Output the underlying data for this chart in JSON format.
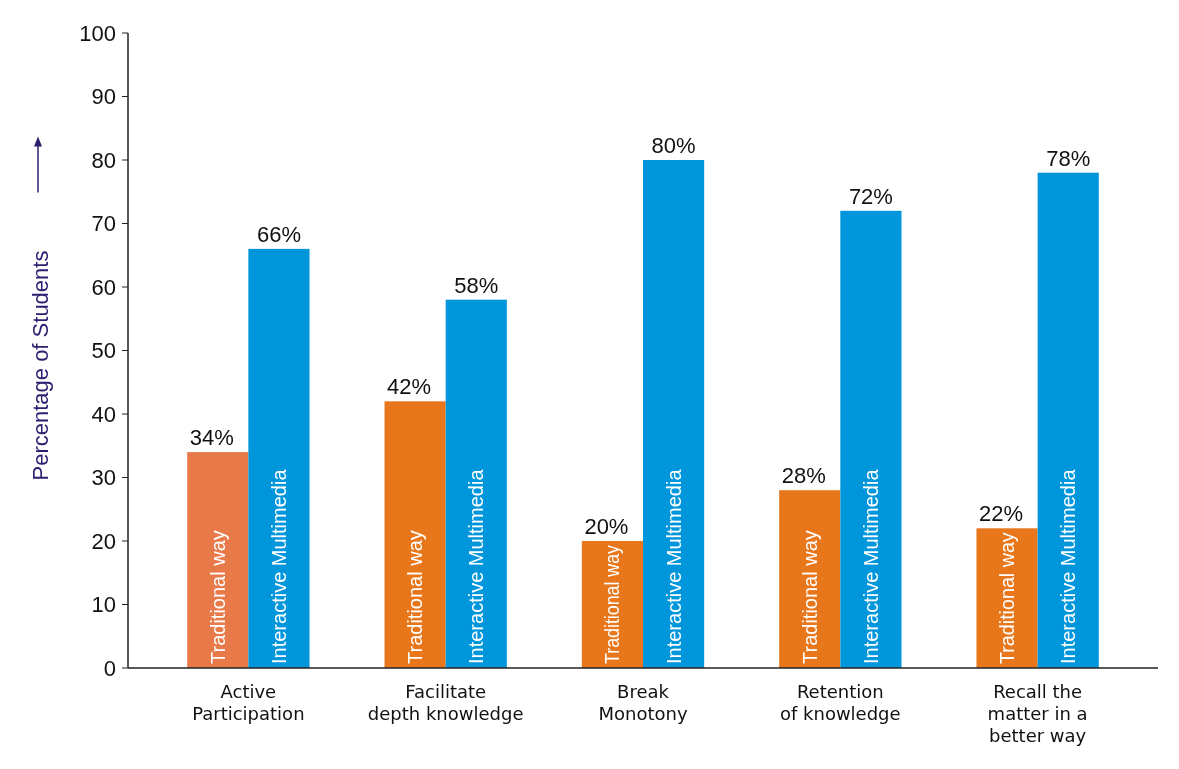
{
  "chart_data": {
    "type": "bar",
    "ylabel": "Percentage of Students",
    "categories": [
      "Active Participation",
      "Facilitate depth knowledge",
      "Break Monotony",
      "Retention of knowledge",
      "Recall the matter in a better way"
    ],
    "series": [
      {
        "name": "Traditional way",
        "colors": [
          "#e87a4a",
          "#e8771c",
          "#e8771c",
          "#e8771c",
          "#e8771c"
        ],
        "values": [
          34,
          42,
          20,
          28,
          22
        ],
        "value_labels": [
          "34%",
          "42%",
          "20%",
          "28%",
          "22%"
        ]
      },
      {
        "name": "Interactive Multimedia",
        "color": "#0096dc",
        "values": [
          66,
          58,
          80,
          72,
          78
        ],
        "value_labels": [
          "66%",
          "58%",
          "80%",
          "72%",
          "78%"
        ]
      }
    ],
    "ylim": [
      0,
      100
    ],
    "yticks": [
      0,
      10,
      20,
      30,
      40,
      50,
      60,
      70,
      80,
      90,
      100
    ],
    "grid": false
  }
}
